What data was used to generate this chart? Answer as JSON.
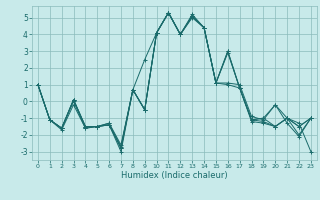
{
  "xlabel": "Humidex (Indice chaleur)",
  "background_color": "#c8eaea",
  "grid_color": "#8bbcbc",
  "line_color": "#1a6b6b",
  "xlim": [
    -0.5,
    23.5
  ],
  "ylim": [
    -3.5,
    5.7
  ],
  "xticks": [
    0,
    1,
    2,
    3,
    4,
    5,
    6,
    7,
    8,
    9,
    10,
    11,
    12,
    13,
    14,
    15,
    16,
    17,
    18,
    19,
    20,
    21,
    22,
    23
  ],
  "yticks": [
    -3,
    -2,
    -1,
    0,
    1,
    2,
    3,
    4,
    5
  ],
  "series": [
    [
      1.0,
      -1.1,
      -1.6,
      0.1,
      -1.5,
      -1.5,
      -1.4,
      -2.8,
      0.7,
      -0.5,
      4.1,
      5.3,
      4.0,
      5.2,
      4.4,
      1.1,
      2.9,
      0.8,
      -1.2,
      -1.3,
      -1.5,
      -1.0,
      -1.3,
      -3.0
    ],
    [
      1.0,
      -1.1,
      -1.6,
      0.0,
      -1.6,
      -1.5,
      -1.4,
      -3.0,
      0.7,
      -0.5,
      4.1,
      5.3,
      4.0,
      5.1,
      4.4,
      1.1,
      3.0,
      0.8,
      -1.1,
      -1.0,
      -1.5,
      -1.0,
      -1.5,
      -1.0
    ],
    [
      1.0,
      -1.1,
      -1.7,
      -0.2,
      -1.6,
      -1.5,
      -1.4,
      -2.7,
      0.7,
      -0.5,
      4.1,
      5.3,
      4.0,
      5.1,
      4.4,
      1.1,
      1.1,
      1.0,
      -0.9,
      -1.1,
      -0.2,
      -1.3,
      -2.1,
      -1.0
    ],
    [
      1.0,
      -1.1,
      -1.6,
      0.1,
      -1.5,
      -1.5,
      -1.3,
      -2.6,
      0.7,
      2.5,
      4.1,
      5.3,
      4.0,
      5.0,
      4.4,
      1.1,
      1.0,
      0.8,
      -1.1,
      -1.0,
      -0.2,
      -1.0,
      -2.0,
      -1.0
    ],
    [
      1.0,
      -1.1,
      -1.6,
      0.1,
      -1.5,
      -1.5,
      -1.3,
      -2.8,
      0.7,
      -0.5,
      4.1,
      5.3,
      4.0,
      5.1,
      4.4,
      1.1,
      3.0,
      0.8,
      -1.1,
      -1.2,
      -1.5,
      -1.0,
      -1.5,
      -1.0
    ]
  ]
}
